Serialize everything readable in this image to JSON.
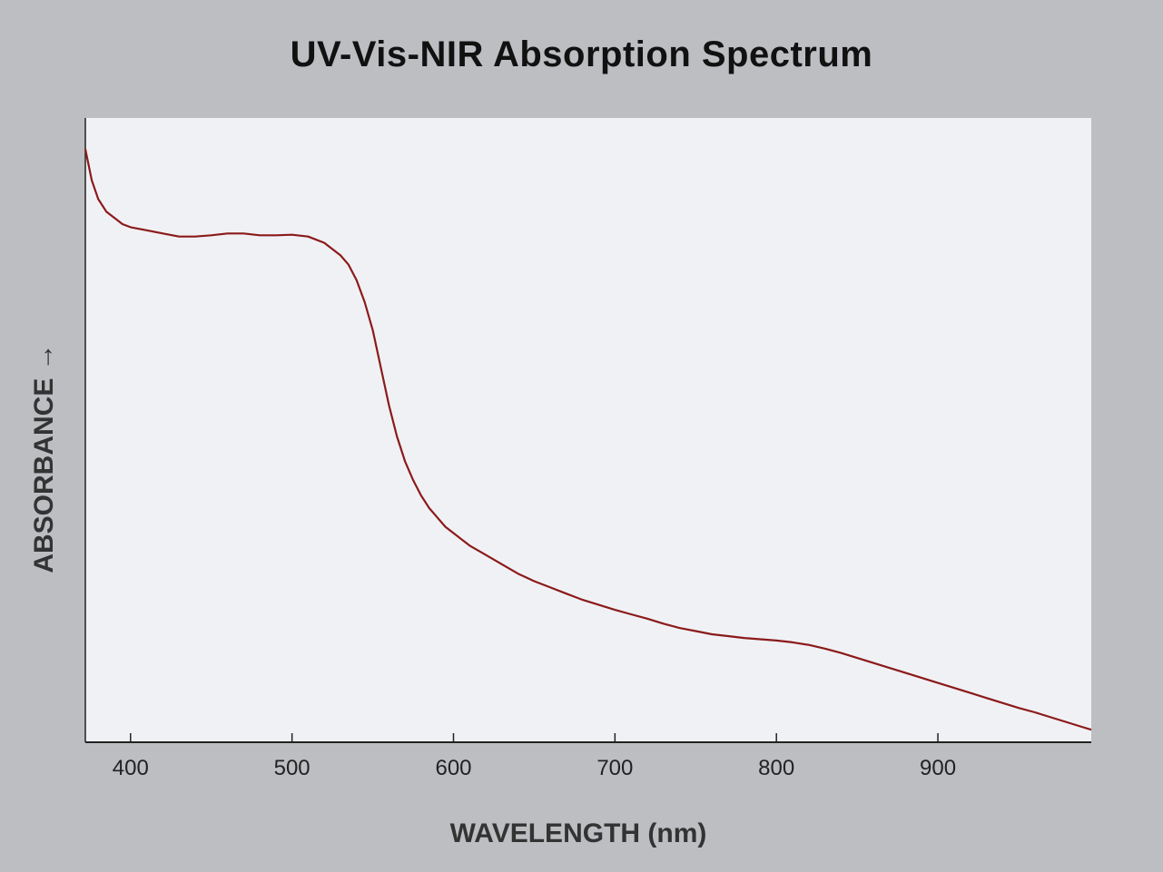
{
  "chart_data": {
    "type": "line",
    "title": "UV-Vis-NIR Absorption Spectrum",
    "xlabel": "WAVELENGTH (nm)",
    "ylabel": "ABSORBANCE →",
    "xlim": [
      372,
      995
    ],
    "ylim": [
      0,
      1
    ],
    "x_ticks": [
      400,
      500,
      600,
      700,
      800,
      900
    ],
    "grid": false,
    "legend": "none",
    "line_color": "#8b1a1a",
    "series": [
      {
        "x": [
          372,
          376,
          380,
          385,
          390,
          395,
          400,
          410,
          420,
          430,
          440,
          450,
          460,
          470,
          480,
          490,
          500,
          510,
          520,
          530,
          535,
          540,
          545,
          550,
          555,
          560,
          565,
          570,
          575,
          580,
          585,
          590,
          595,
          600,
          610,
          620,
          630,
          640,
          650,
          660,
          670,
          680,
          690,
          700,
          710,
          720,
          730,
          740,
          750,
          760,
          770,
          780,
          790,
          800,
          810,
          820,
          830,
          840,
          850,
          860,
          870,
          880,
          890,
          900,
          910,
          920,
          930,
          940,
          950,
          960,
          970,
          980,
          990,
          995
        ],
        "y": [
          0.95,
          0.9,
          0.87,
          0.85,
          0.84,
          0.83,
          0.825,
          0.82,
          0.815,
          0.81,
          0.81,
          0.812,
          0.815,
          0.815,
          0.812,
          0.812,
          0.813,
          0.81,
          0.8,
          0.78,
          0.765,
          0.74,
          0.705,
          0.66,
          0.6,
          0.54,
          0.49,
          0.45,
          0.42,
          0.395,
          0.375,
          0.36,
          0.345,
          0.335,
          0.315,
          0.3,
          0.285,
          0.27,
          0.258,
          0.248,
          0.238,
          0.228,
          0.22,
          0.212,
          0.205,
          0.198,
          0.19,
          0.183,
          0.178,
          0.173,
          0.17,
          0.167,
          0.165,
          0.163,
          0.16,
          0.156,
          0.15,
          0.143,
          0.135,
          0.127,
          0.119,
          0.111,
          0.103,
          0.095,
          0.087,
          0.079,
          0.071,
          0.063,
          0.055,
          0.048,
          0.04,
          0.032,
          0.024,
          0.02
        ]
      }
    ]
  }
}
